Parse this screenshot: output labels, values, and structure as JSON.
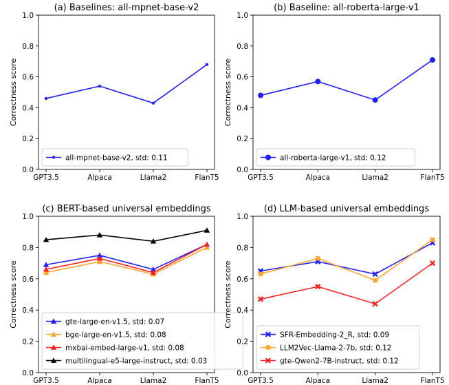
{
  "chart_data": [
    {
      "type": "line",
      "title": "(a) Baselines: all-mpnet-base-v2",
      "ylabel": "Correctness score",
      "ylim": [
        0,
        1.0
      ],
      "yticks": [
        "0.0",
        "0.2",
        "0.4",
        "0.6",
        "0.8",
        "1.0"
      ],
      "categories": [
        "GPT3.5",
        "Alpaca",
        "Llama2",
        "FlanT5"
      ],
      "legend_position": "lower-left",
      "series": [
        {
          "name": "all-mpnet-base-v2, std: 0.11",
          "color": "#1f1fff",
          "marker": "dot-small",
          "values": [
            0.46,
            0.54,
            0.43,
            0.68
          ]
        }
      ]
    },
    {
      "type": "line",
      "title": "(b) Baseline: all-roberta-large-v1",
      "ylabel": "Correctness score",
      "ylim": [
        0,
        1.0
      ],
      "yticks": [
        "0.0",
        "0.2",
        "0.4",
        "0.6",
        "0.8",
        "1.0"
      ],
      "categories": [
        "GPT3.5",
        "Alpaca",
        "Llama2",
        "FlanT5"
      ],
      "legend_position": "lower-left",
      "series": [
        {
          "name": "all-roberta-large-v1, std: 0.12",
          "color": "#1f1fff",
          "marker": "dot",
          "values": [
            0.48,
            0.57,
            0.45,
            0.71
          ]
        }
      ]
    },
    {
      "type": "line",
      "title": "(c) BERT-based universal embeddings",
      "ylabel": "Correctness score",
      "ylim": [
        0,
        1.0
      ],
      "yticks": [
        "0.0",
        "0.2",
        "0.4",
        "0.6",
        "0.8",
        "1.0"
      ],
      "categories": [
        "GPT3.5",
        "Alpaca",
        "Llama2",
        "FlanT5"
      ],
      "legend_position": "lower-left",
      "series": [
        {
          "name": "gte-large-en-v1.5, std: 0.07",
          "color": "#1f1fff",
          "marker": "triangle",
          "values": [
            0.69,
            0.75,
            0.66,
            0.82
          ]
        },
        {
          "name": "bge-large-en-v1.5, std: 0.08",
          "color": "#ffa530",
          "marker": "triangle",
          "values": [
            0.64,
            0.71,
            0.63,
            0.8
          ]
        },
        {
          "name": "mxbai-embed-large-v1, std: 0.08",
          "color": "#ff2020",
          "marker": "triangle",
          "values": [
            0.66,
            0.73,
            0.64,
            0.82
          ]
        },
        {
          "name": "multilingual-e5-large-instruct, std: 0.03",
          "color": "#000000",
          "marker": "triangle",
          "values": [
            0.85,
            0.88,
            0.84,
            0.91
          ]
        }
      ]
    },
    {
      "type": "line",
      "title": "(d) LLM-based universal embeddings",
      "ylabel": "Correctness score",
      "ylim": [
        0,
        1.0
      ],
      "yticks": [
        "0.0",
        "0.2",
        "0.4",
        "0.6",
        "0.8",
        "1.0"
      ],
      "categories": [
        "GPT3.5",
        "Alpaca",
        "Llama2",
        "FlanT5"
      ],
      "legend_position": "lower-left",
      "series": [
        {
          "name": "SFR-Embedding-2_R, std: 0.09",
          "color": "#1f1fff",
          "marker": "x",
          "values": [
            0.65,
            0.71,
            0.63,
            0.83
          ]
        },
        {
          "name": "LLM2Vec-Llama-2-7b, std: 0.12",
          "color": "#ffa530",
          "marker": "square",
          "values": [
            0.63,
            0.73,
            0.59,
            0.85
          ]
        },
        {
          "name": "gte-Qwen2-7B-instruct, std: 0.12",
          "color": "#ff2020",
          "marker": "x",
          "values": [
            0.47,
            0.55,
            0.44,
            0.7
          ]
        }
      ]
    }
  ]
}
